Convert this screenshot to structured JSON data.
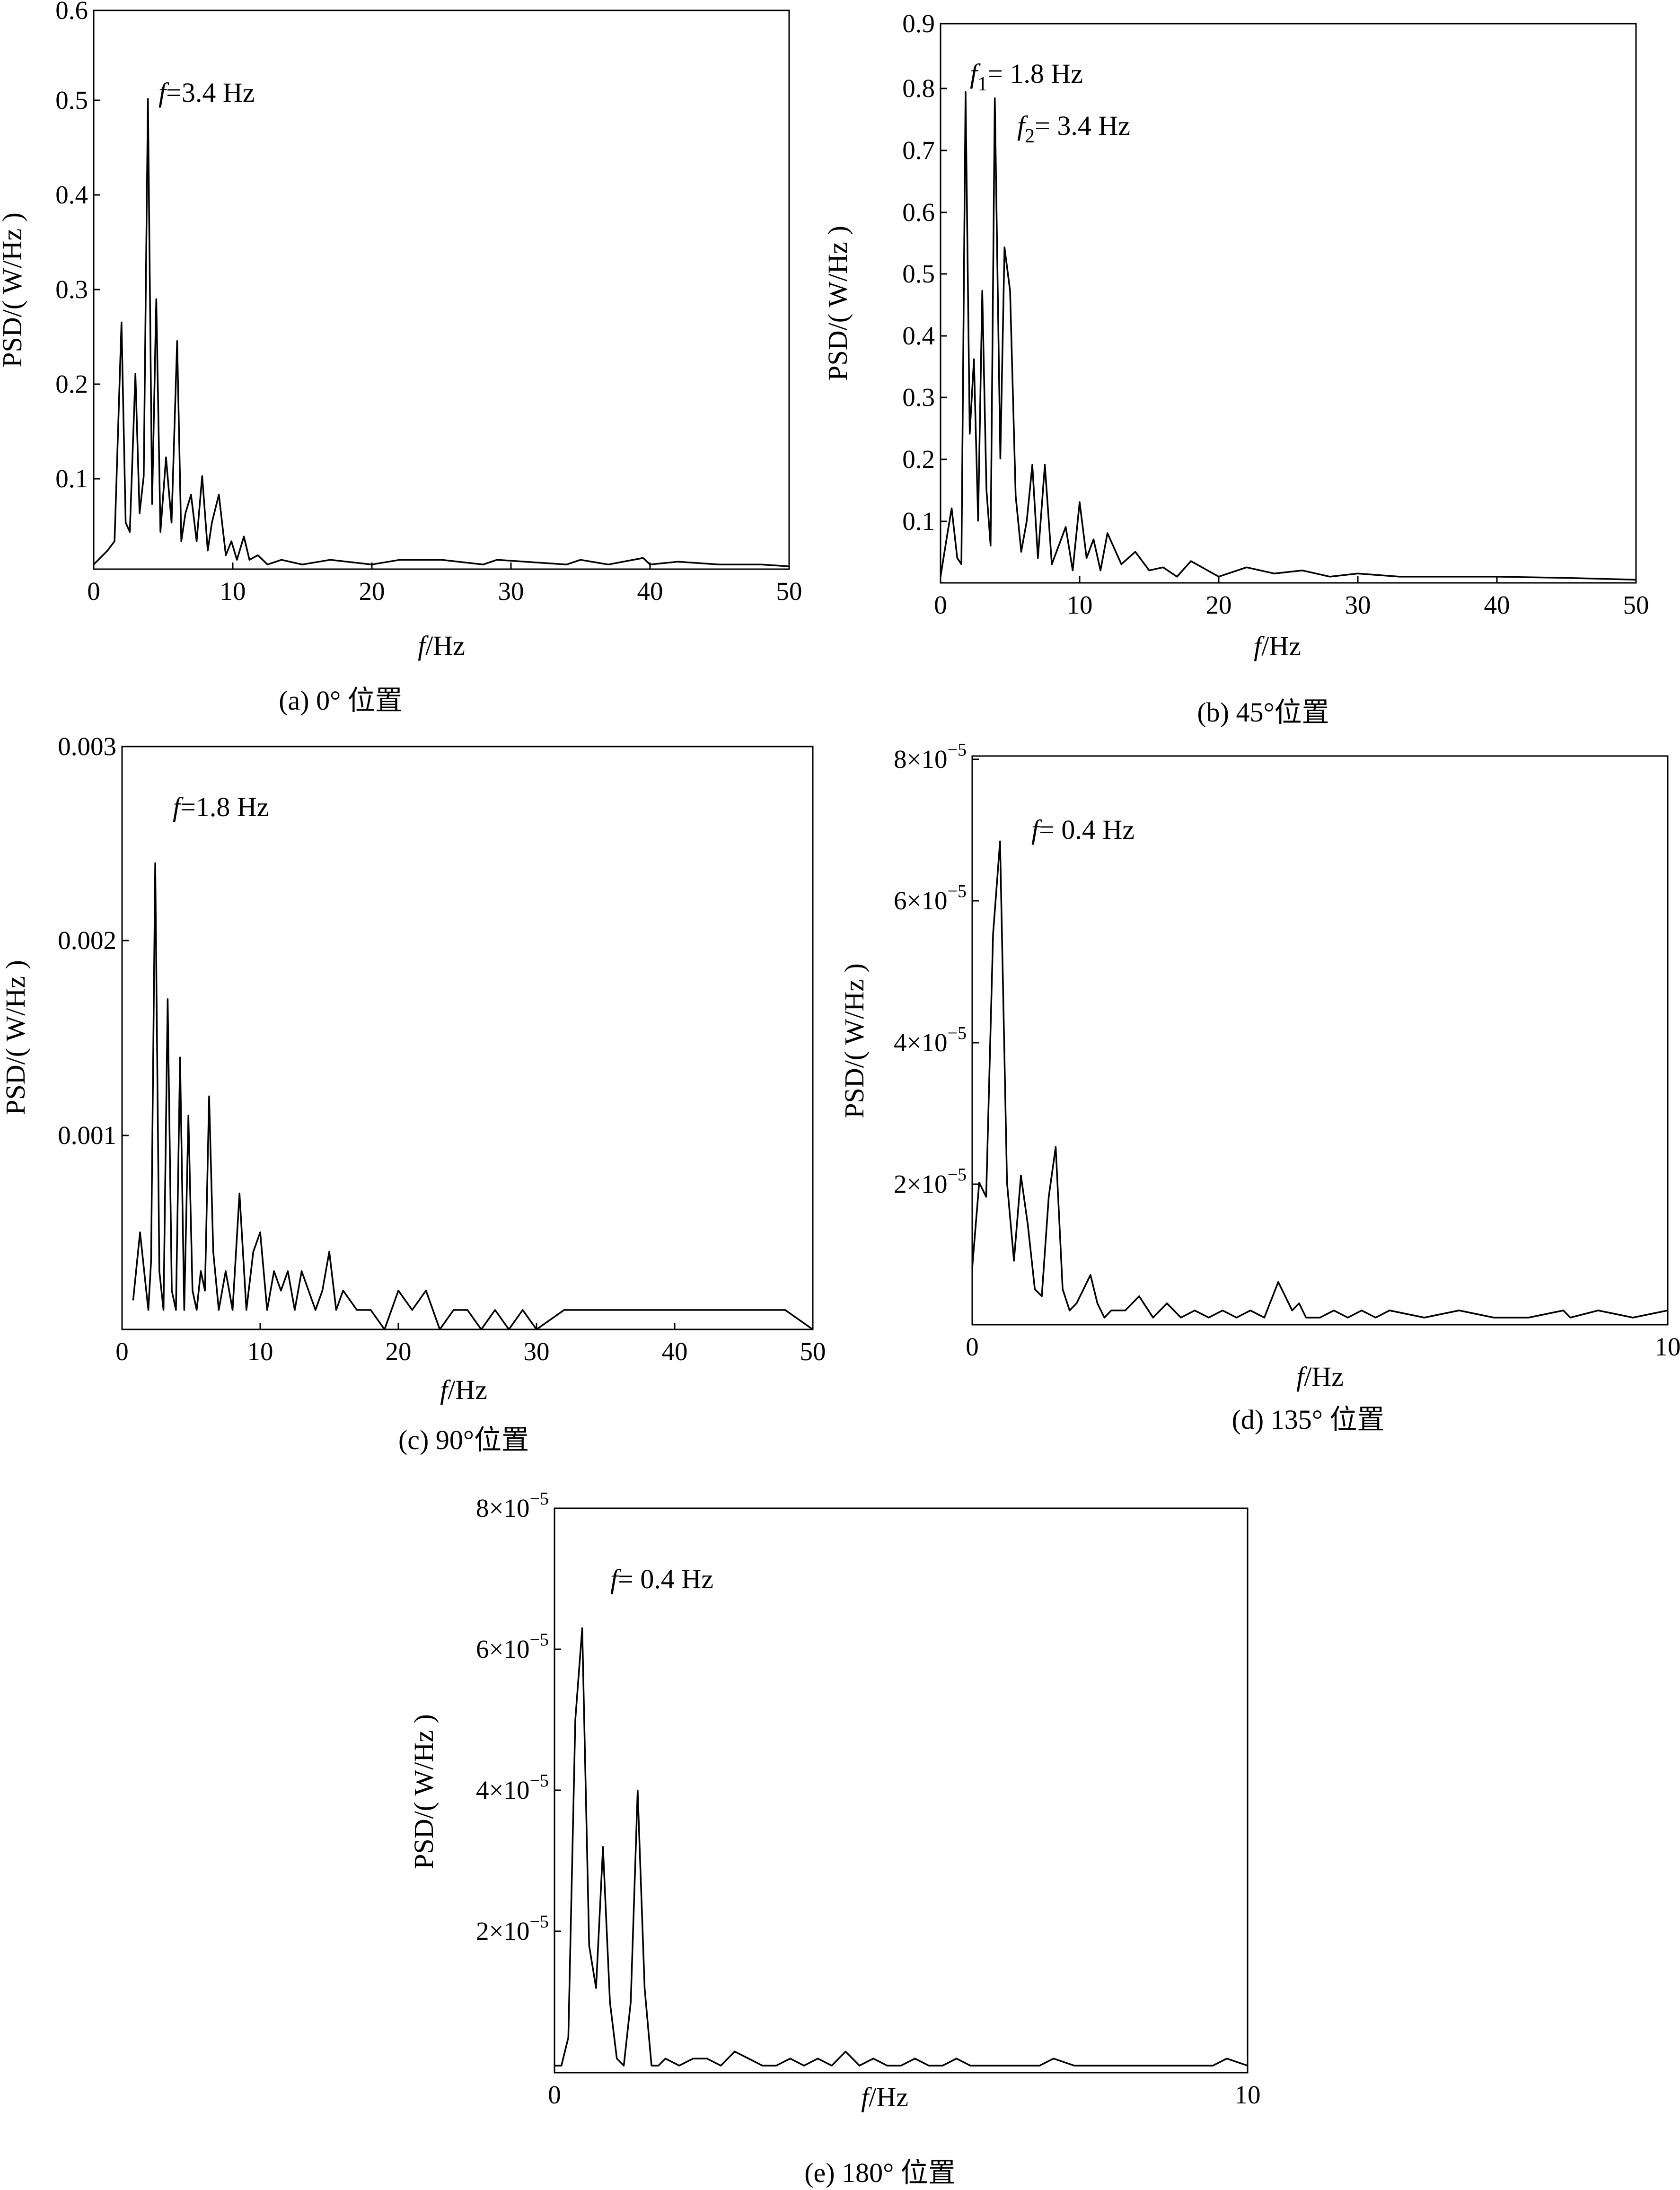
{
  "chart_data": [
    {
      "type": "line",
      "caption": "(a)  0° 位置",
      "xlabel": "f/Hz",
      "ylabel": "PSD/( W/Hz )",
      "xlim": [
        0,
        50
      ],
      "ylim": [
        0,
        0.6
      ],
      "xticks": [
        "0",
        "10",
        "20",
        "30",
        "40",
        "50"
      ],
      "yticks": [
        "0.1",
        "0.2",
        "0.3",
        "0.4",
        "0.5",
        "0.6"
      ],
      "annotations": [
        {
          "f": "f",
          "text": "=3.4 Hz"
        }
      ],
      "series": [
        {
          "x": [
            0,
            1,
            1.5,
            2,
            2.3,
            2.6,
            3,
            3.3,
            3.6,
            3.9,
            4.2,
            4.5,
            4.8,
            5.2,
            5.6,
            6,
            6.3,
            6.6,
            7,
            7.4,
            7.8,
            8.2,
            8.5,
            9,
            9.5,
            9.9,
            10.3,
            10.8,
            11.2,
            11.8,
            12.5,
            13.5,
            15,
            17,
            20,
            22,
            25,
            28,
            29,
            31,
            34,
            35,
            37,
            39.5,
            40,
            42,
            45,
            48,
            50
          ],
          "y": [
            0.005,
            0.02,
            0.03,
            0.265,
            0.05,
            0.04,
            0.21,
            0.06,
            0.1,
            0.505,
            0.07,
            0.29,
            0.04,
            0.12,
            0.05,
            0.245,
            0.03,
            0.06,
            0.08,
            0.03,
            0.1,
            0.02,
            0.05,
            0.08,
            0.015,
            0.03,
            0.01,
            0.035,
            0.01,
            0.015,
            0.005,
            0.01,
            0.005,
            0.01,
            0.005,
            0.01,
            0.01,
            0.005,
            0.01,
            0.008,
            0.005,
            0.01,
            0.005,
            0.012,
            0.005,
            0.008,
            0.005,
            0.005,
            0.003
          ]
        }
      ]
    },
    {
      "type": "line",
      "caption": "(b) 45°位置",
      "xlabel": "f/Hz",
      "ylabel": "PSD/( W/Hz )",
      "xlim": [
        0,
        50
      ],
      "ylim": [
        0,
        0.9
      ],
      "xticks": [
        "0",
        "10",
        "20",
        "30",
        "40",
        "50"
      ],
      "yticks": [
        "0.1",
        "0.2",
        "0.3",
        "0.4",
        "0.5",
        "0.6",
        "0.7",
        "0.8",
        "0.9"
      ],
      "annotations": [
        {
          "f": "f",
          "sub": "1",
          "text": "= 1.8 Hz"
        },
        {
          "f": "f",
          "sub": "2",
          "text": "= 3.4 Hz"
        }
      ],
      "series": [
        {
          "x": [
            0,
            0.5,
            0.8,
            1.2,
            1.5,
            1.8,
            2.1,
            2.4,
            2.7,
            3,
            3.3,
            3.6,
            3.9,
            4.3,
            4.6,
            5,
            5.4,
            5.8,
            6.2,
            6.6,
            7,
            7.5,
            8,
            8.5,
            9,
            9.5,
            10,
            10.5,
            11,
            11.5,
            12,
            13,
            14,
            15,
            16,
            17,
            18,
            20,
            22,
            24,
            26,
            28,
            30,
            33,
            36,
            40,
            45,
            50
          ],
          "y": [
            0.01,
            0.08,
            0.12,
            0.04,
            0.03,
            0.79,
            0.24,
            0.36,
            0.1,
            0.47,
            0.15,
            0.06,
            0.78,
            0.2,
            0.54,
            0.47,
            0.14,
            0.05,
            0.1,
            0.19,
            0.04,
            0.19,
            0.03,
            0.06,
            0.09,
            0.02,
            0.13,
            0.04,
            0.07,
            0.02,
            0.08,
            0.03,
            0.05,
            0.02,
            0.025,
            0.01,
            0.035,
            0.01,
            0.025,
            0.015,
            0.02,
            0.01,
            0.015,
            0.01,
            0.01,
            0.01,
            0.008,
            0.005
          ]
        }
      ]
    },
    {
      "type": "line",
      "caption": "(c) 90°位置",
      "xlabel": "f/Hz",
      "ylabel": "PSD/( W/Hz )",
      "xlim": [
        0,
        50
      ],
      "ylim": [
        0,
        0.003
      ],
      "xticks": [
        "0",
        "10",
        "20",
        "30",
        "40",
        "50"
      ],
      "yticks": [
        "0.001",
        "0.002",
        "0.003"
      ],
      "annotations": [
        {
          "f": "f",
          "text": "=1.8 Hz"
        }
      ],
      "series": [
        {
          "x": [
            0.8,
            1.3,
            1.6,
            1.9,
            2.1,
            2.4,
            2.7,
            3,
            3.3,
            3.6,
            3.9,
            4.2,
            4.5,
            4.8,
            5.1,
            5.4,
            5.7,
            6,
            6.3,
            6.6,
            7,
            7.5,
            8,
            8.5,
            9,
            9.5,
            10,
            10.5,
            11,
            11.5,
            12,
            12.5,
            13,
            13.5,
            14,
            14.5,
            15,
            15.5,
            16,
            17,
            18,
            19,
            20,
            21,
            22,
            23,
            24,
            25,
            26,
            27,
            28,
            29,
            30,
            32,
            34,
            36,
            38,
            40,
            42,
            44,
            46,
            48,
            50
          ],
          "y": [
            0.00015,
            0.0005,
            0.0003,
            0.0001,
            0.00035,
            0.0024,
            0.0003,
            0.0001,
            0.0017,
            0.0002,
            0.0001,
            0.0014,
            0.0001,
            0.0011,
            0.0002,
            0.0001,
            0.0003,
            0.0002,
            0.0012,
            0.0004,
            0.0001,
            0.0003,
            0.0001,
            0.0007,
            0.0001,
            0.0004,
            0.0005,
            0.0001,
            0.0003,
            0.0002,
            0.0003,
            0.0001,
            0.0003,
            0.0002,
            0.0001,
            0.0002,
            0.0004,
            0.0001,
            0.0002,
            0.0001,
            0.0001,
            0.0,
            0.0002,
            0.0001,
            0.0002,
            0.0,
            0.0001,
            0.0001,
            0.0,
            0.0001,
            0.0,
            0.0001,
            0.0,
            0.0001,
            0.0001,
            0.0001,
            0.0001,
            0.0001,
            0.0001,
            0.0001,
            0.0001,
            0.0001,
            0.0
          ]
        }
      ]
    },
    {
      "type": "line",
      "caption": "(d)  135° 位置",
      "xlabel": "f/Hz",
      "ylabel": "PSD/( W/Hz )",
      "xlim": [
        0,
        10
      ],
      "ylim": [
        0,
        8e-05
      ],
      "xticks": [
        "0",
        "10"
      ],
      "yticks": [
        "2×10−5",
        "4×10−5",
        "6×10−5",
        "8×10−5"
      ],
      "annotations": [
        {
          "f": "f",
          "text": "= 0.4 Hz"
        }
      ],
      "series": [
        {
          "x": [
            0,
            0.1,
            0.2,
            0.3,
            0.4,
            0.5,
            0.6,
            0.7,
            0.8,
            0.9,
            1.0,
            1.1,
            1.2,
            1.3,
            1.4,
            1.5,
            1.6,
            1.7,
            1.8,
            1.9,
            2.0,
            2.2,
            2.4,
            2.6,
            2.8,
            3.0,
            3.2,
            3.4,
            3.6,
            3.8,
            4.0,
            4.2,
            4.4,
            4.6,
            4.7,
            4.8,
            5.0,
            5.2,
            5.4,
            5.6,
            5.8,
            6.0,
            6.5,
            7.0,
            7.5,
            8.0,
            8.5,
            8.6,
            9.0,
            9.5,
            10.0
          ],
          "y": [
            8e-06,
            2e-05,
            1.8e-05,
            5.5e-05,
            6.8e-05,
            2e-05,
            9e-06,
            2.1e-05,
            1.4e-05,
            5e-06,
            4e-06,
            1.8e-05,
            2.5e-05,
            5e-06,
            2e-06,
            3e-06,
            5e-06,
            7e-06,
            3e-06,
            1e-06,
            2e-06,
            2e-06,
            4e-06,
            1e-06,
            3e-06,
            1e-06,
            2e-06,
            1e-06,
            2e-06,
            1e-06,
            2e-06,
            1e-06,
            6e-06,
            2e-06,
            3e-06,
            1e-06,
            1e-06,
            2e-06,
            1e-06,
            2e-06,
            1e-06,
            2e-06,
            1e-06,
            2e-06,
            1e-06,
            1e-06,
            2e-06,
            1e-06,
            2e-06,
            1e-06,
            2e-06
          ]
        }
      ]
    },
    {
      "type": "line",
      "caption": "(e) 180° 位置",
      "xlabel": "f/Hz",
      "ylabel": "PSD/( W/Hz )",
      "xlim": [
        0,
        10
      ],
      "ylim": [
        0,
        8e-05
      ],
      "xticks": [
        "0",
        "10"
      ],
      "yticks": [
        "2×10−5",
        "4×10−5",
        "6×10−5",
        "8×10−5"
      ],
      "annotations": [
        {
          "f": "f",
          "text": "= 0.4 Hz"
        }
      ],
      "series": [
        {
          "x": [
            0,
            0.1,
            0.2,
            0.3,
            0.4,
            0.5,
            0.6,
            0.7,
            0.8,
            0.9,
            1.0,
            1.1,
            1.2,
            1.3,
            1.4,
            1.5,
            1.6,
            1.8,
            2.0,
            2.2,
            2.4,
            2.6,
            2.8,
            3.0,
            3.2,
            3.4,
            3.6,
            3.8,
            4.0,
            4.2,
            4.4,
            4.6,
            4.8,
            5.0,
            5.2,
            5.4,
            5.6,
            5.8,
            6.0,
            6.5,
            7.0,
            7.2,
            7.5,
            8.0,
            8.5,
            9.0,
            9.5,
            9.7,
            10.0
          ],
          "y": [
            1e-06,
            1e-06,
            5e-06,
            5e-05,
            6.3e-05,
            1.8e-05,
            1.2e-05,
            3.2e-05,
            1e-05,
            2e-06,
            1e-06,
            1e-05,
            4e-05,
            1.2e-05,
            1e-06,
            1e-06,
            2e-06,
            1e-06,
            2e-06,
            2e-06,
            1e-06,
            3e-06,
            2e-06,
            1e-06,
            1e-06,
            2e-06,
            1e-06,
            2e-06,
            1e-06,
            3e-06,
            1e-06,
            2e-06,
            1e-06,
            1e-06,
            2e-06,
            1e-06,
            1e-06,
            2e-06,
            1e-06,
            1e-06,
            1e-06,
            2e-06,
            1e-06,
            1e-06,
            1e-06,
            1e-06,
            1e-06,
            2e-06,
            1e-06
          ]
        }
      ]
    }
  ]
}
